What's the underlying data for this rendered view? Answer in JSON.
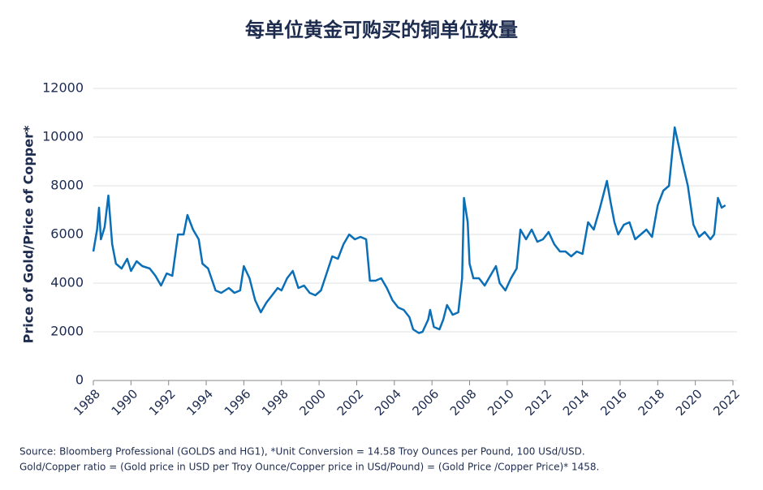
{
  "chart_data": {
    "type": "line",
    "title": "每单位黄金可购买的铜单位数量",
    "y_label": "Price of Gold/Price of Copper*",
    "notes": [
      "Source: Bloomberg Professional (GOLDS and HG1), *Unit Conversion = 14.58 Troy Ounces per Pound, 100 USd/USD.",
      "Gold/Copper ratio = (Gold price in USD per Troy Ounce/Copper price in USd/Pound) = (Gold Price /Copper Price)* 1458."
    ],
    "x": [
      1988.0,
      1988.2,
      1988.3,
      1988.4,
      1988.6,
      1988.8,
      1989.0,
      1989.2,
      1989.5,
      1989.8,
      1990.0,
      1990.3,
      1990.6,
      1991.0,
      1991.3,
      1991.6,
      1991.9,
      1992.2,
      1992.5,
      1992.8,
      1993.0,
      1993.3,
      1993.6,
      1993.8,
      1994.1,
      1994.5,
      1994.8,
      1995.2,
      1995.5,
      1995.8,
      1996.0,
      1996.3,
      1996.6,
      1996.9,
      1997.2,
      1997.5,
      1997.8,
      1998.0,
      1998.3,
      1998.6,
      1998.9,
      1999.2,
      1999.5,
      1999.8,
      2000.1,
      2000.4,
      2000.7,
      2001.0,
      2001.3,
      2001.6,
      2001.9,
      2002.2,
      2002.5,
      2002.7,
      2003.0,
      2003.3,
      2003.6,
      2003.9,
      2004.2,
      2004.5,
      2004.8,
      2005.0,
      2005.3,
      2005.5,
      2005.8,
      2005.9,
      2006.1,
      2006.4,
      2006.6,
      2006.8,
      2007.1,
      2007.4,
      2007.6,
      2007.7,
      2007.9,
      2008.0,
      2008.2,
      2008.5,
      2008.8,
      2009.1,
      2009.4,
      2009.6,
      2009.9,
      2010.2,
      2010.5,
      2010.7,
      2011.0,
      2011.3,
      2011.6,
      2011.9,
      2012.2,
      2012.5,
      2012.8,
      2013.1,
      2013.4,
      2013.7,
      2014.0,
      2014.3,
      2014.6,
      2014.9,
      2015.1,
      2015.3,
      2015.5,
      2015.7,
      2015.9,
      2016.2,
      2016.5,
      2016.8,
      2017.1,
      2017.4,
      2017.7,
      2018.0,
      2018.3,
      2018.6,
      2018.9,
      2019.1,
      2019.3,
      2019.6,
      2019.9,
      2020.2,
      2020.5,
      2020.8,
      2021.0,
      2021.2,
      2021.4,
      2021.6
    ],
    "series": [
      {
        "color": "#0a6fb7",
        "values": [
          5300,
          6200,
          7100,
          5800,
          6300,
          7600,
          5600,
          4800,
          4600,
          5000,
          4500,
          4900,
          4700,
          4600,
          4300,
          3900,
          4400,
          4300,
          6000,
          6000,
          6800,
          6200,
          5800,
          4800,
          4600,
          3700,
          3600,
          3800,
          3600,
          3700,
          4700,
          4200,
          3300,
          2800,
          3200,
          3500,
          3800,
          3700,
          4200,
          4500,
          3800,
          3900,
          3600,
          3500,
          3700,
          4400,
          5100,
          5000,
          5600,
          6000,
          5800,
          5900,
          5800,
          4100,
          4100,
          4200,
          3800,
          3300,
          3000,
          2900,
          2600,
          2100,
          1950,
          2000,
          2500,
          2900,
          2200,
          2100,
          2500,
          3100,
          2700,
          2800,
          4200,
          7500,
          6500,
          4800,
          4200,
          4200,
          3900,
          4300,
          4700,
          4000,
          3700,
          4200,
          4600,
          6200,
          5800,
          6200,
          5700,
          5800,
          6100,
          5600,
          5300,
          5300,
          5100,
          5300,
          5200,
          6500,
          6200,
          7000,
          7600,
          8200,
          7300,
          6500,
          6000,
          6400,
          6500,
          5800,
          6000,
          6200,
          5900,
          7200,
          7800,
          8000,
          10400,
          9700,
          9000,
          8000,
          6400,
          5900,
          6100,
          5800,
          6000,
          7500,
          7100,
          7200
        ]
      }
    ],
    "xlim": [
      1988,
      2022
    ],
    "xticks": [
      1988,
      1990,
      1992,
      1994,
      1996,
      1998,
      2000,
      2002,
      2004,
      2006,
      2008,
      2010,
      2012,
      2014,
      2016,
      2018,
      2020,
      2022
    ],
    "ylim": [
      0,
      12000
    ],
    "yticks": [
      0,
      2000,
      4000,
      6000,
      8000,
      10000,
      12000
    ],
    "grid": true
  }
}
